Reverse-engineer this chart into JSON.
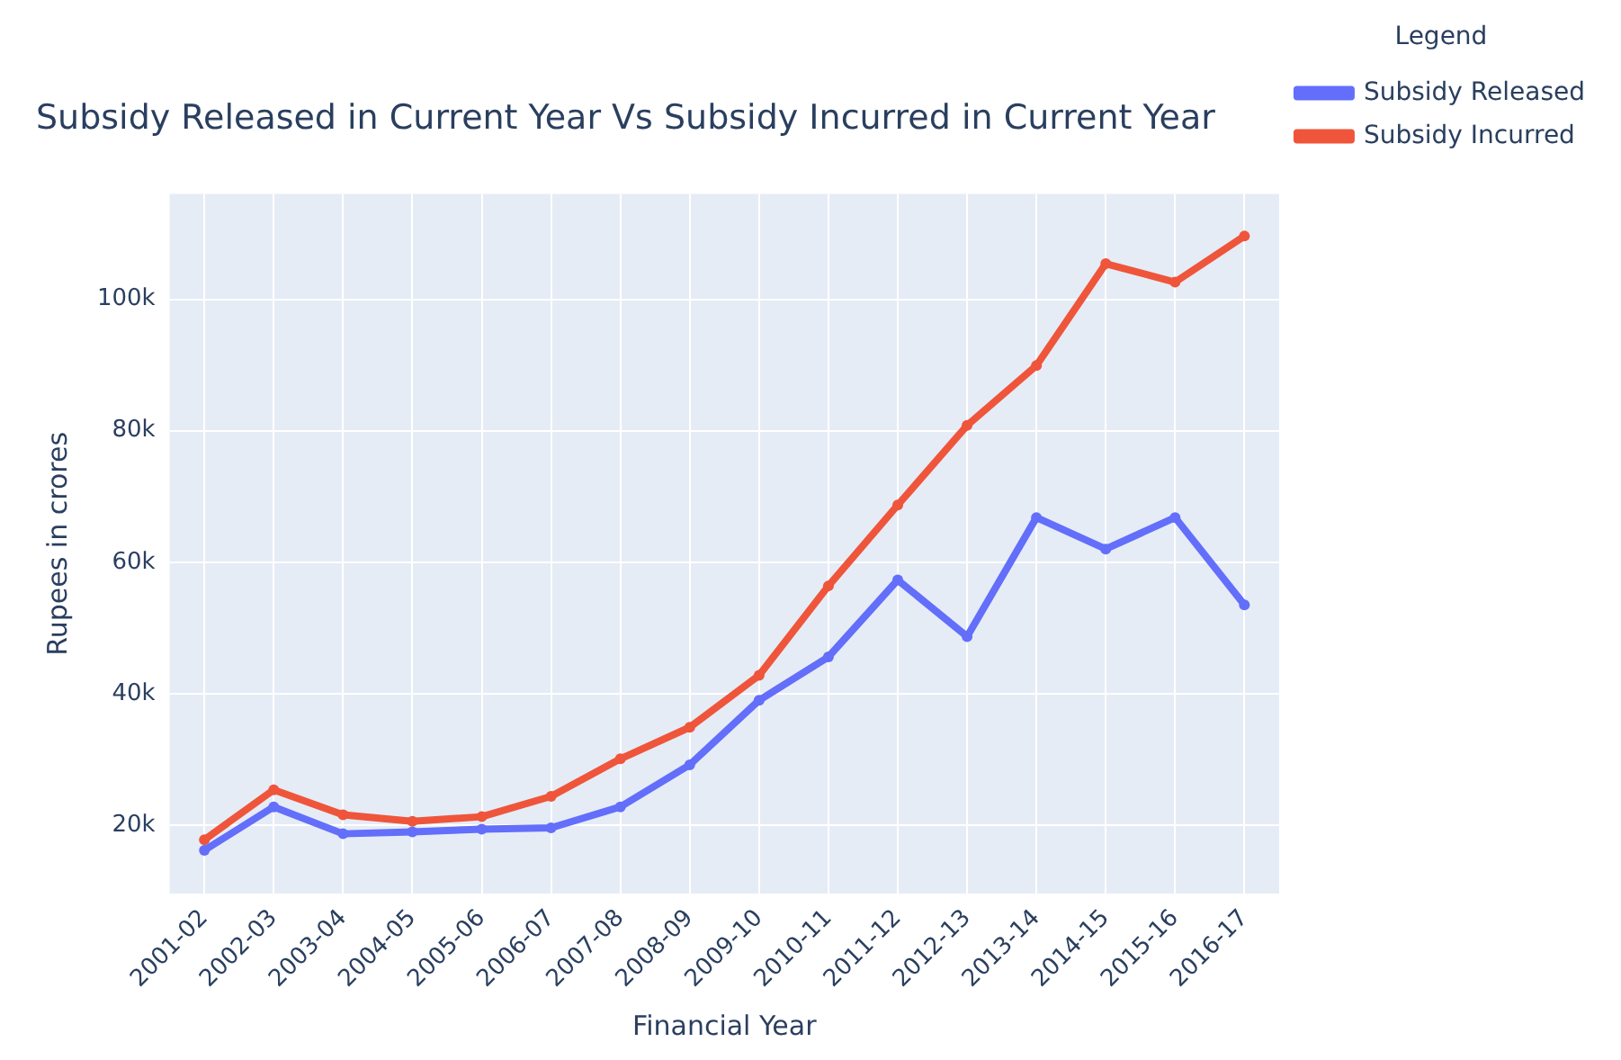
{
  "chart_data": {
    "type": "line",
    "title": "Subsidy Released in Current Year Vs Subsidy Incurred in Current Year",
    "xlabel": "Financial Year",
    "ylabel": "Rupees in crores",
    "legend_title": "Legend",
    "categories": [
      "2001-02",
      "2002-03",
      "2003-04",
      "2004-05",
      "2005-06",
      "2006-07",
      "2007-08",
      "2008-09",
      "2009-10",
      "2010-11",
      "2011-12",
      "2012-13",
      "2013-14",
      "2014-15",
      "2015-16",
      "2016-17"
    ],
    "series": [
      {
        "name": "Subsidy Released",
        "color": "#636efa",
        "values": [
          16200,
          22800,
          18700,
          19000,
          19400,
          19600,
          22800,
          29200,
          39000,
          45600,
          57300,
          48700,
          66800,
          62000,
          66800,
          53500
        ]
      },
      {
        "name": "Subsidy Incurred",
        "color": "#ef553b",
        "values": [
          17800,
          25400,
          21600,
          20600,
          21300,
          24400,
          30100,
          34900,
          42800,
          56400,
          68700,
          80800,
          89900,
          105400,
          102600,
          109600
        ]
      }
    ],
    "ylim": [
      9600,
      116000
    ],
    "yticks": [
      {
        "value": 20000,
        "label": "20k"
      },
      {
        "value": 40000,
        "label": "40k"
      },
      {
        "value": 60000,
        "label": "60k"
      },
      {
        "value": 80000,
        "label": "80k"
      },
      {
        "value": 100000,
        "label": "100k"
      }
    ],
    "grid": true,
    "legend": "top right",
    "marker": "circle",
    "line_style": "solid"
  }
}
